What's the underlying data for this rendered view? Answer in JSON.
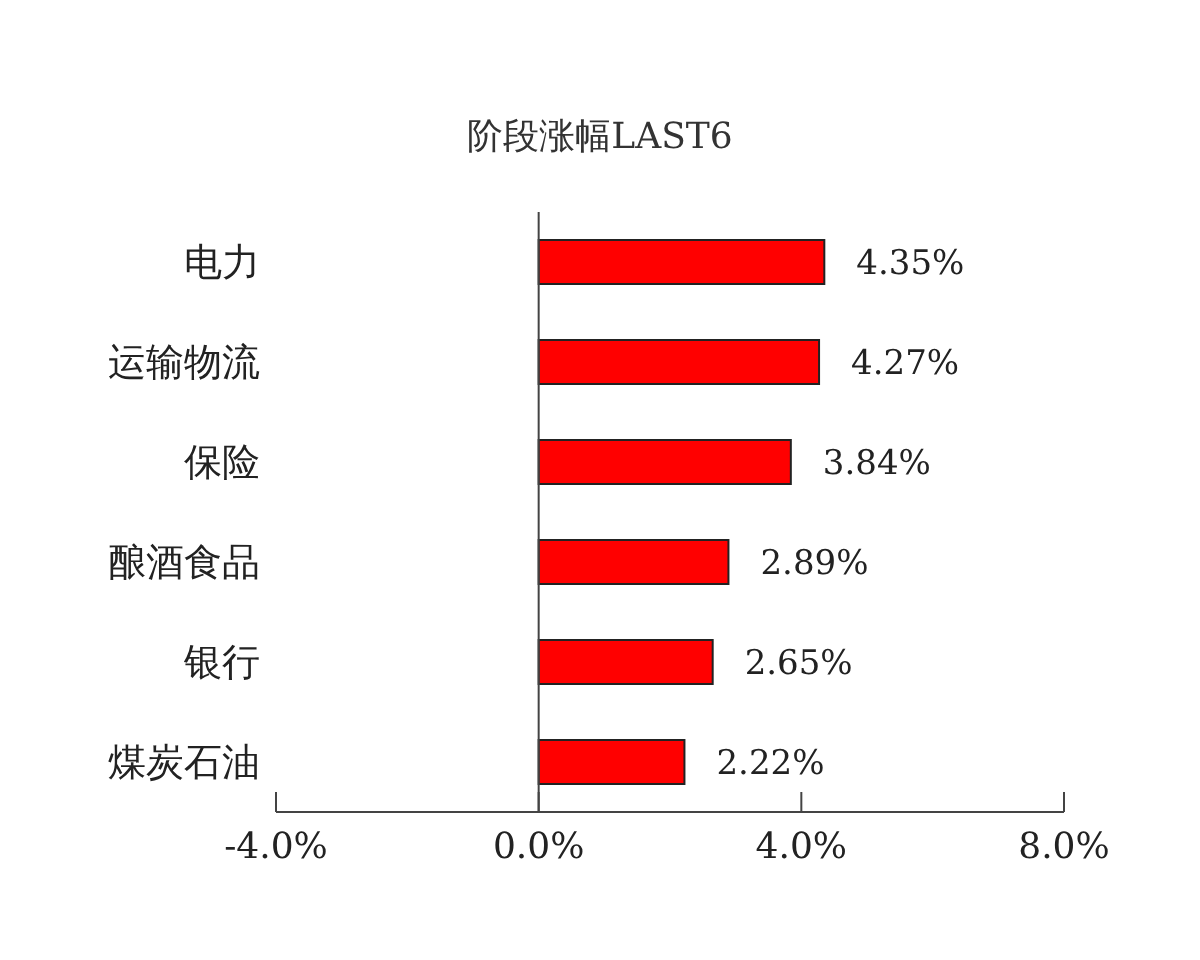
{
  "chart_data": {
    "type": "bar",
    "orientation": "horizontal",
    "title": "阶段涨幅LAST6",
    "categories": [
      "电力",
      "运输物流",
      "保险",
      "酿酒食品",
      "银行",
      "煤炭石油"
    ],
    "values": [
      4.35,
      4.27,
      3.84,
      2.89,
      2.65,
      2.22
    ],
    "value_labels": [
      "4.35%",
      "4.27%",
      "3.84%",
      "2.89%",
      "2.65%",
      "2.22%"
    ],
    "color": "#ff0000",
    "xlim": [
      -4,
      8
    ],
    "xticks": [
      {
        "value": -4,
        "label": "-4.0%"
      },
      {
        "value": 0,
        "label": "0.0%"
      },
      {
        "value": 4,
        "label": "4.0%"
      },
      {
        "value": 8,
        "label": "8.0%"
      }
    ],
    "legend": false
  }
}
